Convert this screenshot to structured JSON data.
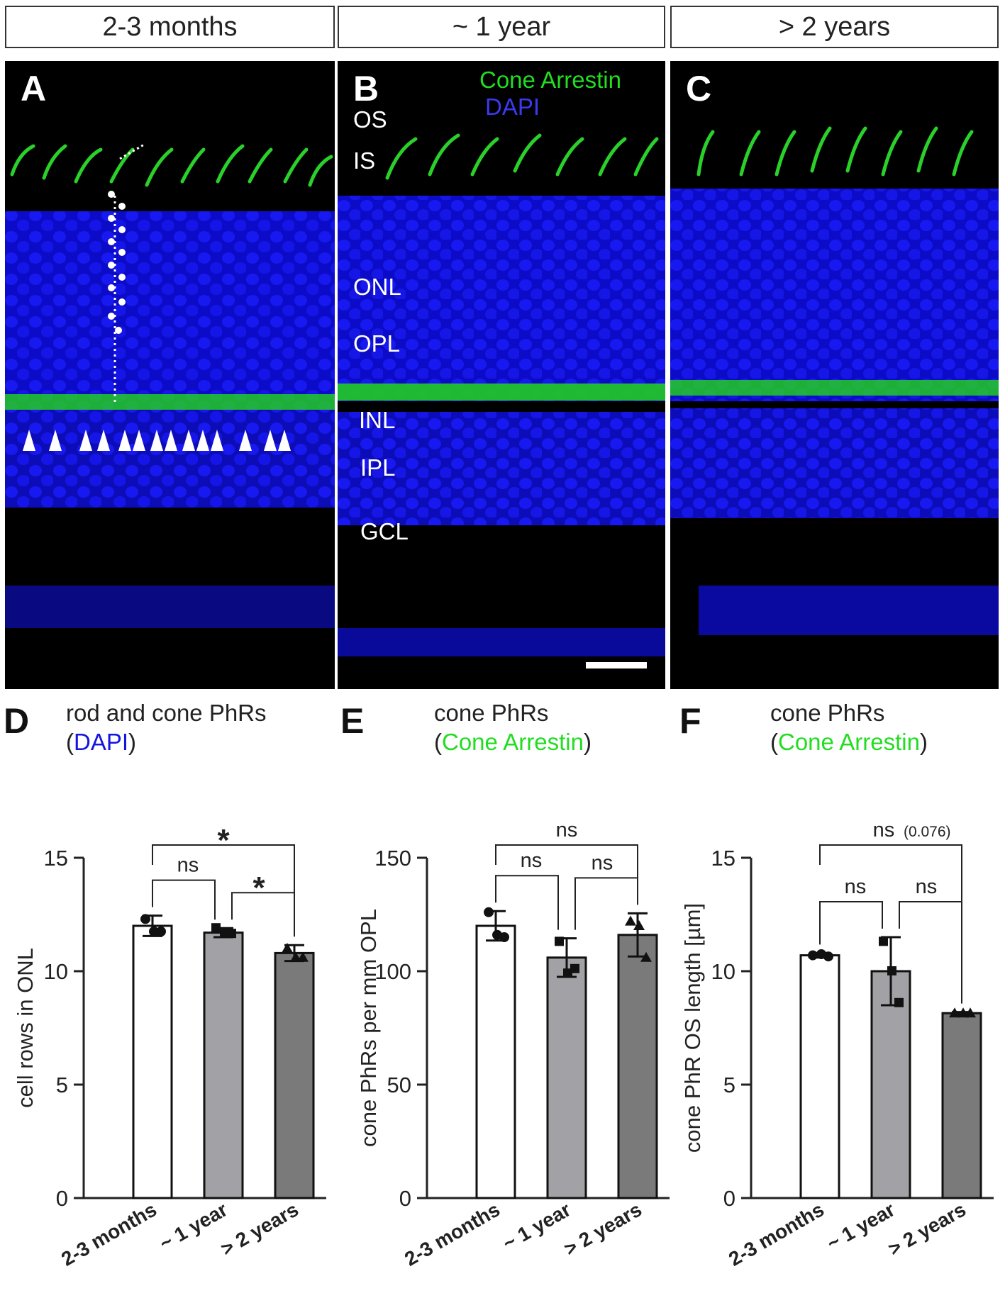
{
  "headers": [
    "2-3 months",
    "~ 1 year",
    "> 2 years"
  ],
  "images": {
    "letters": [
      "A",
      "B",
      "C"
    ],
    "legend": {
      "cone_arrestin": "Cone Arrestin",
      "dapi": "DAPI",
      "green": "#22dd22",
      "blue": "#1a1ae0"
    },
    "layers": [
      "OS",
      "IS",
      "ONL",
      "OPL",
      "INL",
      "IPL",
      "GCL"
    ]
  },
  "charts": {
    "D": {
      "letter": "D",
      "title_line1": "rod and cone PhRs",
      "title_open": "(",
      "title_stain": "DAPI",
      "title_close": ")",
      "stain_color": "#1515e0"
    },
    "E": {
      "letter": "E",
      "title_line1": "cone PhRs",
      "title_open": "(",
      "title_stain": "Cone Arrestin",
      "title_close": ")",
      "stain_color": "#22dd22"
    },
    "F": {
      "letter": "F",
      "title_line1": "cone PhRs",
      "title_open": "(",
      "title_stain": "Cone Arrestin",
      "title_close": ")",
      "stain_color": "#22dd22"
    }
  },
  "chart_data": [
    {
      "type": "bar",
      "id": "D",
      "categories": [
        "2-3 months",
        "~ 1 year",
        "> 2 years"
      ],
      "ylabel": "cell rows in ONL",
      "ylim": [
        0,
        15
      ],
      "yticks": [
        0,
        5,
        10,
        15
      ],
      "values": [
        12.0,
        11.7,
        10.8
      ],
      "errors": [
        0.45,
        0.2,
        0.35
      ],
      "points": [
        [
          12.3,
          11.75,
          11.75
        ],
        [
          11.9,
          11.7,
          11.65
        ],
        [
          11.0,
          10.6,
          10.6
        ]
      ],
      "markers": [
        "circle",
        "square",
        "triangle"
      ],
      "colors": [
        "#ffffff",
        "#a2a2a6",
        "#7a7a7a"
      ],
      "comparisons": [
        {
          "from": 0,
          "to": 1,
          "label": "ns",
          "level": 0
        },
        {
          "from": 1,
          "to": 2,
          "label": "*",
          "level": 0
        },
        {
          "from": 0,
          "to": 2,
          "label": "*",
          "level": 1
        }
      ]
    },
    {
      "type": "bar",
      "id": "E",
      "categories": [
        "2-3 months",
        "~ 1 year",
        "> 2 years"
      ],
      "ylabel": "cone PhRs per mm OPL",
      "ylim": [
        0,
        150
      ],
      "yticks": [
        0,
        50,
        100,
        150
      ],
      "values": [
        120,
        106,
        116
      ],
      "errors": [
        6.5,
        8.5,
        9.5
      ],
      "points": [
        [
          126,
          116,
          115
        ],
        [
          113,
          99,
          101
        ],
        [
          122,
          120,
          106
        ]
      ],
      "markers": [
        "circle",
        "square",
        "triangle"
      ],
      "colors": [
        "#ffffff",
        "#a2a2a6",
        "#7a7a7a"
      ],
      "comparisons": [
        {
          "from": 0,
          "to": 1,
          "label": "ns",
          "level": 0
        },
        {
          "from": 1,
          "to": 2,
          "label": "ns",
          "level": 0
        },
        {
          "from": 0,
          "to": 2,
          "label": "ns",
          "level": 1
        }
      ]
    },
    {
      "type": "bar",
      "id": "F",
      "categories": [
        "2-3 months",
        "~ 1 year",
        "> 2 years"
      ],
      "ylabel": "cone PhR OS length [µm]",
      "ylim": [
        0,
        15
      ],
      "yticks": [
        0,
        5,
        10,
        15
      ],
      "values": [
        10.7,
        10.0,
        8.15
      ],
      "errors": [
        0.1,
        1.5,
        0.05
      ],
      "points": [
        [
          10.7,
          10.75,
          10.65
        ],
        [
          11.3,
          10.0,
          8.6
        ],
        [
          8.15,
          8.15,
          8.15
        ]
      ],
      "markers": [
        "circle",
        "square",
        "triangle"
      ],
      "colors": [
        "#ffffff",
        "#a2a2a6",
        "#7a7a7a"
      ],
      "comparisons": [
        {
          "from": 0,
          "to": 1,
          "label": "ns",
          "level": 0
        },
        {
          "from": 1,
          "to": 2,
          "label": "ns",
          "level": 0
        },
        {
          "from": 0,
          "to": 2,
          "label": "ns",
          "sub": "(0.076)",
          "level": 1
        }
      ]
    }
  ]
}
